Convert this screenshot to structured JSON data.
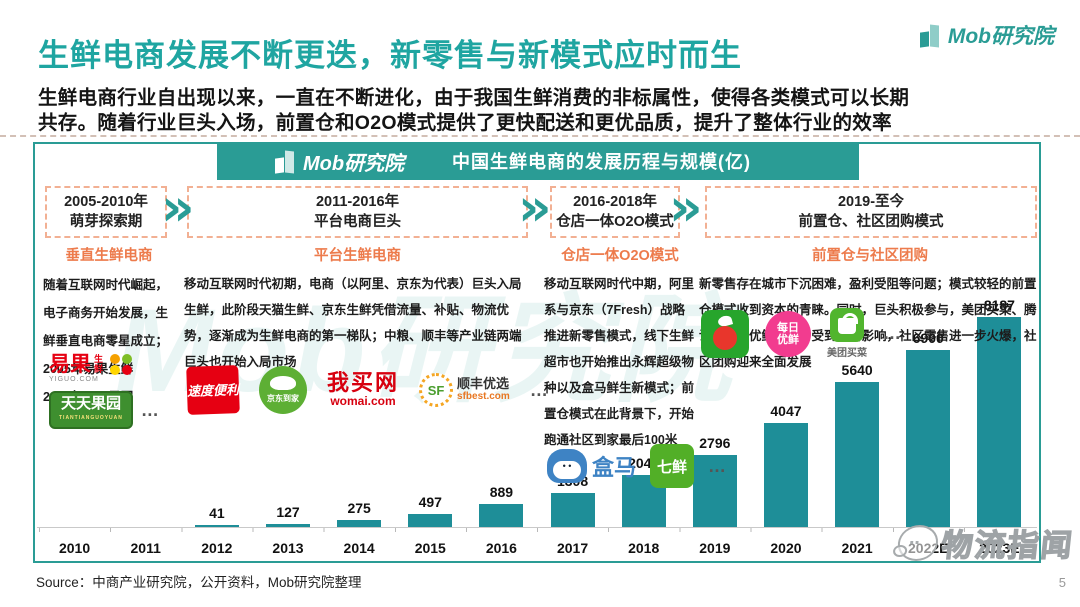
{
  "brand": {
    "name": "Mob研究院"
  },
  "header": {
    "title": "生鲜电商发展不断更迭，新零售与新模式应时而生",
    "intro_line1": "生鲜电商行业自出现以来，一直在不断进化，由于我国生鲜消费的非标属性，使得各类模式可以长期",
    "intro_line2": "共存。随着行业巨头入场，前置仓和O2O模式提供了更快配送和更优品质，提升了整体行业的效率"
  },
  "panel": {
    "bar_logo": "Mob研究院",
    "bar_title": "中国生鲜电商的发展历程与规模(亿)",
    "watermark": "Mob研究院"
  },
  "icons": {
    "chevron": "»",
    "ellipsis": "…"
  },
  "timeline": {
    "boxes": [
      {
        "period": "2005-2010年",
        "label": "萌芽探索期"
      },
      {
        "period": "2011-2016年",
        "label": "平台电商巨头"
      },
      {
        "period": "2016-2018年",
        "label": "仓店一体O2O模式"
      },
      {
        "period": "2019-至今",
        "label": "前置仓、社区团购模式"
      }
    ]
  },
  "columns": [
    {
      "title": "垂直生鲜电商",
      "text": "随着互联网时代崛起，电子商务开始发展，生鲜垂直电商零星成立；\n2005年易果生鲜\n2009年天天果园"
    },
    {
      "title": "平台生鲜电商",
      "text": "移动互联网时代初期，电商（以阿里、京东为代表）巨头入局生鲜，此阶段天猫生鲜、京东生鲜凭借流量、补贴、物流优势，逐渐成为生鲜电商的第一梯队；中粮、顺丰等产业链两端巨头也开始入局市场"
    },
    {
      "title": "仓店一体O2O模式",
      "text": "移动互联网时代中期，阿里系与京东（7Fresh）战略推进新零售模式，线下生鲜超市也开始推出永辉超级物种以及盒马鲜生新模式；前置仓模式在此背景下，开始跑通社区到家最后100米"
    },
    {
      "title": "前置仓与社区团购",
      "text": "新零售存在城市下沉困难，盈利受阻等问题；模式较轻的前置仓模式收到资本的青睐。同时，巨头积极参与，美团买菜、腾讯的每日优鲜入市；受到疫情影响，社区零售进一步火爆，社区团购迎来全面发展"
    }
  ],
  "logos": {
    "yiguo_main": "易果",
    "yiguo_sub": "生鲜",
    "yiguo_url": "YIGUO.COM",
    "tiantian": "天天果园",
    "tiantian_sub": "TIANTIANGUOYUAN",
    "sudu": "速度便利",
    "jddj": "京东到家",
    "womai_main": "我买网",
    "womai_url": "womai.com",
    "sf_badge": "SF",
    "sf_main": "顺丰优选",
    "sf_url": "sfbest.com",
    "hema": "盒马",
    "qixian": "七鲜",
    "missfresh_l1": "每日",
    "missfresh_l2": "优鲜",
    "meituan": "美团买菜"
  },
  "chart_data": {
    "type": "bar",
    "title": "中国生鲜电商的发展历程与规模(亿)",
    "x": [
      "2010",
      "2011",
      "2012",
      "2013",
      "2014",
      "2015",
      "2016",
      "2017",
      "2018",
      "2019",
      "2020",
      "2021",
      "2022E",
      "2023E"
    ],
    "values": [
      null,
      null,
      41,
      127,
      275,
      497,
      889,
      1308,
      2046,
      2796,
      4047,
      5640,
      6900,
      8187
    ],
    "xlabel": "",
    "ylabel": "规模(亿)",
    "ylim": [
      0,
      8800
    ],
    "bar_color": "#1E8E98",
    "value_labels": true,
    "legend": "none",
    "grid": false
  },
  "footer": {
    "source": "Source：中商产业研究院，公开资料，Mob研究院整理",
    "page": "5"
  },
  "watermark_bottom_right": "物流指闻"
}
